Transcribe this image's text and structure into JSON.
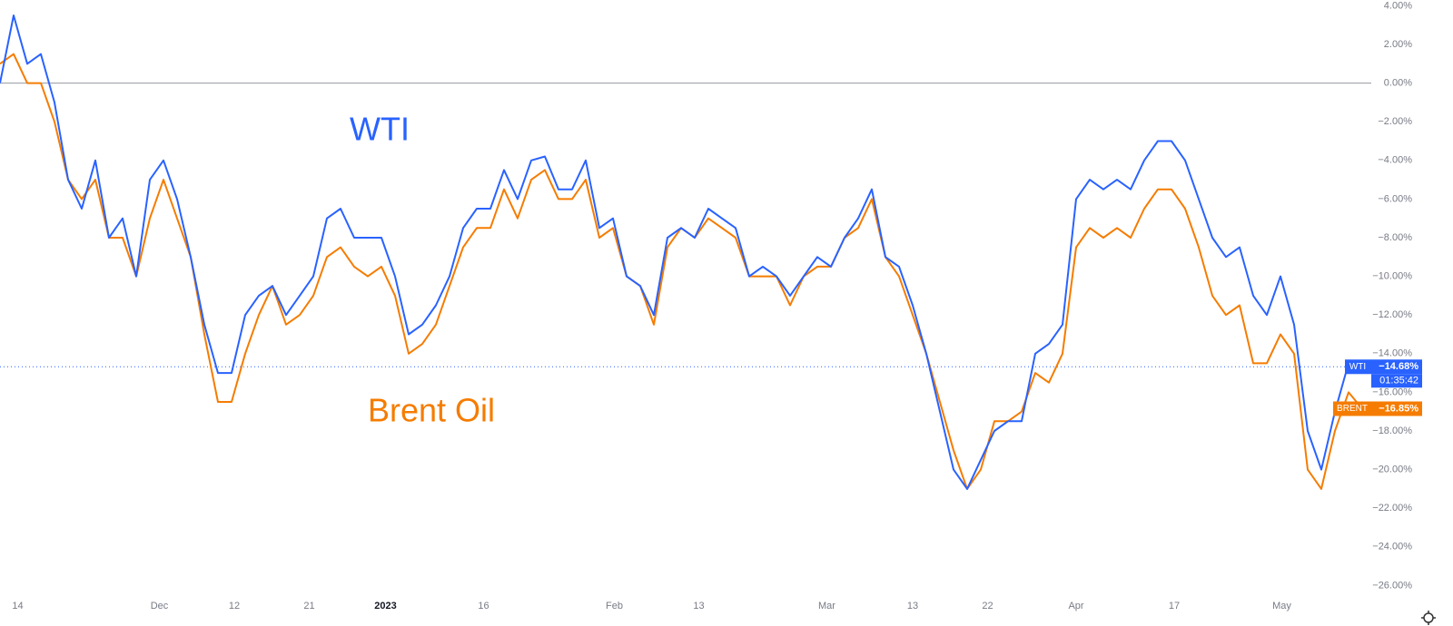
{
  "chart_data": {
    "type": "line",
    "annotations": [
      {
        "text": "WTI",
        "color": "#2962ff"
      },
      {
        "text": "Brent Oil",
        "color": "#f57c00"
      }
    ],
    "countdown": "01:35:42",
    "baseline": 0,
    "series": [
      {
        "name": "WTI",
        "color": "#2962ff",
        "last_value_label": "−14.68%",
        "values": [
          0,
          3.5,
          1,
          1.5,
          -1,
          -5,
          -6.5,
          -4,
          -8,
          -7,
          -10,
          -5,
          -4,
          -6,
          -9,
          -12.5,
          -15,
          -15,
          -12,
          -11,
          -10.5,
          -12,
          -11,
          -10,
          -7,
          -6.5,
          -8,
          -8,
          -8,
          -10,
          -13,
          -12.5,
          -11.5,
          -10,
          -7.5,
          -6.5,
          -6.5,
          -4.5,
          -6,
          -4,
          -3.8,
          -5.5,
          -5.5,
          -4,
          -7.5,
          -7,
          -10,
          -10.5,
          -12,
          -8,
          -7.5,
          -8,
          -6.5,
          -7,
          -7.5,
          -10,
          -9.5,
          -10,
          -11,
          -10,
          -9,
          -9.5,
          -8,
          -7,
          -5.5,
          -9,
          -9.5,
          -11.5,
          -14,
          -17,
          -20,
          -21,
          -19.5,
          -18,
          -17.5,
          -17.5,
          -14,
          -13.5,
          -12.5,
          -6,
          -5,
          -5.5,
          -5,
          -5.5,
          -4,
          -3,
          -3,
          -4,
          -6,
          -8,
          -9,
          -8.5,
          -11,
          -12,
          -10,
          -12.5,
          -18,
          -20,
          -17,
          -14.5,
          -14.68
        ]
      },
      {
        "name": "BRENT",
        "color": "#f57c00",
        "last_value_label": "−16.85%",
        "values": [
          1,
          1.5,
          0,
          0,
          -2,
          -5,
          -6,
          -5,
          -8,
          -8,
          -10,
          -7,
          -5,
          -7,
          -9,
          -13,
          -16.5,
          -16.5,
          -14,
          -12,
          -10.5,
          -12.5,
          -12,
          -11,
          -9,
          -8.5,
          -9.5,
          -10,
          -9.5,
          -11,
          -14,
          -13.5,
          -12.5,
          -10.5,
          -8.5,
          -7.5,
          -7.5,
          -5.5,
          -7,
          -5,
          -4.5,
          -6,
          -6,
          -5,
          -8,
          -7.5,
          -10,
          -10.5,
          -12.5,
          -8.5,
          -7.5,
          -8,
          -7,
          -7.5,
          -8,
          -10,
          -10,
          -10,
          -11.5,
          -10,
          -9.5,
          -9.5,
          -8,
          -7.5,
          -6,
          -9,
          -10,
          -12,
          -14,
          -16.5,
          -19,
          -21,
          -20,
          -17.5,
          -17.5,
          -17,
          -15,
          -15.5,
          -14,
          -8.5,
          -7.5,
          -8,
          -7.5,
          -8,
          -6.5,
          -5.5,
          -5.5,
          -6.5,
          -8.5,
          -11,
          -12,
          -11.5,
          -14.5,
          -14.5,
          -13,
          -14,
          -20,
          -21,
          -18,
          -16,
          -16.85
        ]
      }
    ],
    "xlim": [
      0,
      100
    ],
    "xticks": [
      {
        "value": 1.3,
        "label": "14"
      },
      {
        "value": 11.7,
        "label": "Dec"
      },
      {
        "value": 17.2,
        "label": "12"
      },
      {
        "value": 22.7,
        "label": "21"
      },
      {
        "value": 28.3,
        "label": "2023"
      },
      {
        "value": 35.5,
        "label": "16"
      },
      {
        "value": 45.1,
        "label": "Feb"
      },
      {
        "value": 51.3,
        "label": "13"
      },
      {
        "value": 60.7,
        "label": "Mar"
      },
      {
        "value": 67,
        "label": "13"
      },
      {
        "value": 72.5,
        "label": "22"
      },
      {
        "value": 79,
        "label": "Apr"
      },
      {
        "value": 86.2,
        "label": "17"
      },
      {
        "value": 94.1,
        "label": "May"
      }
    ],
    "ylim": [
      -28,
      4.3
    ],
    "yticks": [
      {
        "value": 4,
        "label": "4.00%"
      },
      {
        "value": 2,
        "label": "2.00%"
      },
      {
        "value": 0,
        "label": "0.00%"
      },
      {
        "value": -2,
        "label": "−2.00%"
      },
      {
        "value": -4,
        "label": "−4.00%"
      },
      {
        "value": -6,
        "label": "−6.00%"
      },
      {
        "value": -8,
        "label": "−8.00%"
      },
      {
        "value": -10,
        "label": "−10.00%"
      },
      {
        "value": -12,
        "label": "−12.00%"
      },
      {
        "value": -14,
        "label": "−14.00%"
      },
      {
        "value": -16,
        "label": "−16.00%"
      },
      {
        "value": -18,
        "label": "−18.00%"
      },
      {
        "value": -20,
        "label": "−20.00%"
      },
      {
        "value": -22,
        "label": "−22.00%"
      },
      {
        "value": -24,
        "label": "−24.00%"
      },
      {
        "value": -26,
        "label": "−26.00%"
      }
    ]
  }
}
